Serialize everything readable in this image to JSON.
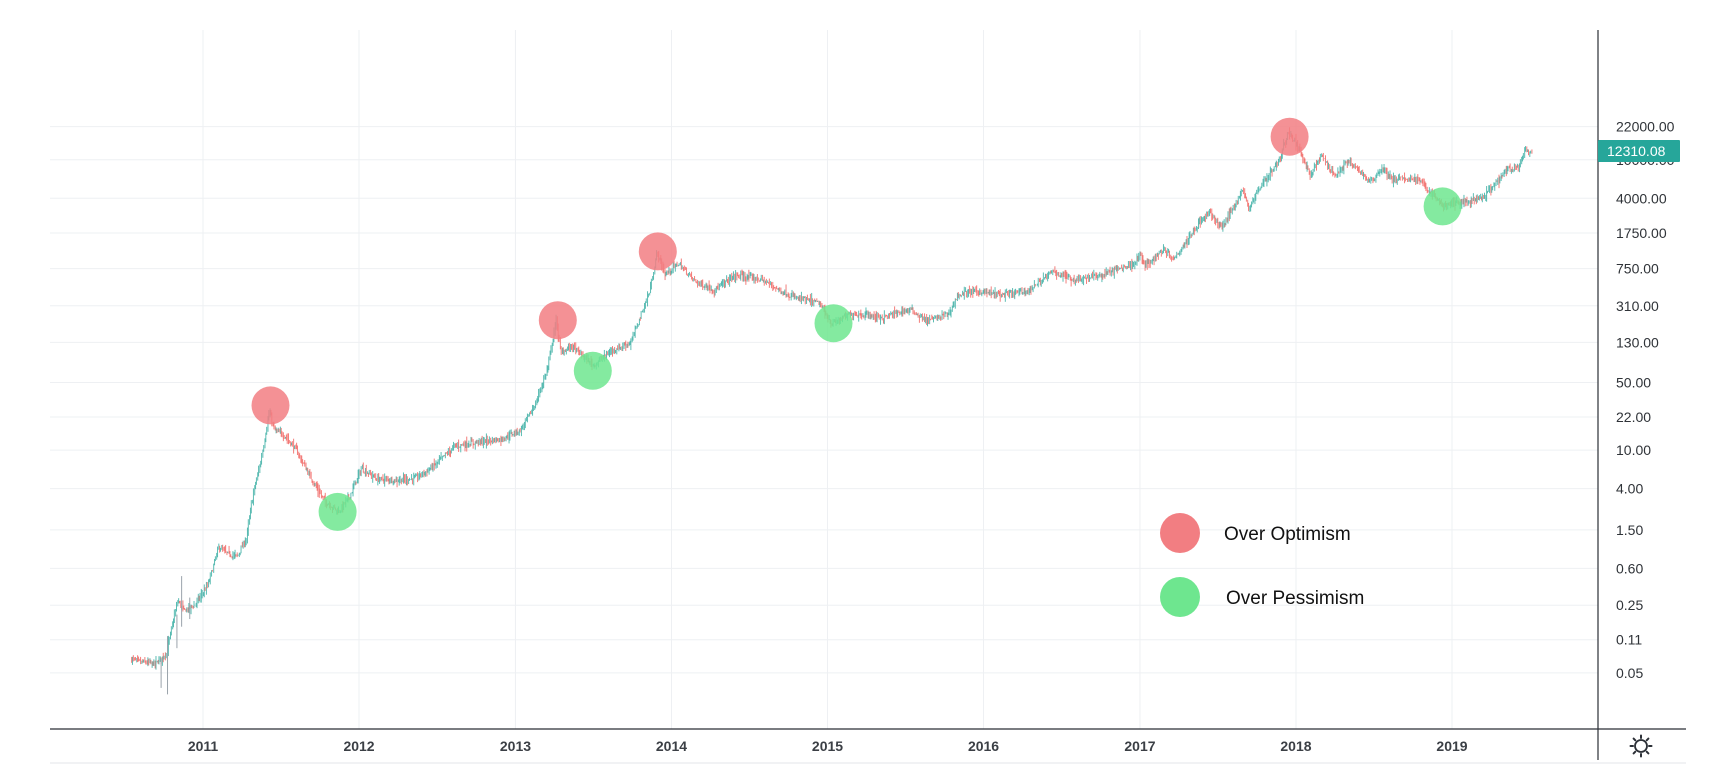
{
  "chart_data": {
    "type": "line",
    "title": "",
    "xlabel": "",
    "ylabel": "",
    "y_scale": "log",
    "xlim": [
      "2010-06-15",
      "2020-04-05"
    ],
    "ylim": [
      0.025,
      36000
    ],
    "grid": true,
    "legend_position": "bottom-right",
    "x_ticks": [
      "2011",
      "2012",
      "2013",
      "2014",
      "2015",
      "2016",
      "2017",
      "2018",
      "2019"
    ],
    "x_tick_dates": [
      "2011-01-01",
      "2012-01-01",
      "2013-01-01",
      "2014-01-01",
      "2015-01-01",
      "2016-01-01",
      "2017-01-01",
      "2018-01-01",
      "2019-01-01"
    ],
    "y_ticks": [
      {
        "value": 22000,
        "label": "22000.00"
      },
      {
        "value": 10000,
        "label": "10000.00"
      },
      {
        "value": 4000,
        "label": "4000.00"
      },
      {
        "value": 1750,
        "label": "1750.00"
      },
      {
        "value": 750,
        "label": "750.00"
      },
      {
        "value": 310,
        "label": "310.00"
      },
      {
        "value": 130,
        "label": "130.00"
      },
      {
        "value": 50,
        "label": "50.00"
      },
      {
        "value": 22,
        "label": "22.00"
      },
      {
        "value": 10,
        "label": "10.00"
      },
      {
        "value": 4,
        "label": "4.00"
      },
      {
        "value": 1.5,
        "label": "1.50"
      },
      {
        "value": 0.6,
        "label": "0.60"
      },
      {
        "value": 0.25,
        "label": "0.25"
      },
      {
        "value": 0.11,
        "label": "0.11"
      },
      {
        "value": 0.05,
        "label": "0.05"
      }
    ],
    "last_price": {
      "value": 12310.08,
      "label": "12310.08"
    },
    "colors": {
      "up": "#26a69a",
      "down": "#ef5350",
      "optimism": "#f27e82",
      "pessimism": "#6ee68f",
      "price_label_bg": "#26a69a"
    },
    "series": [
      {
        "values": [
          {
            "x": "2010-07-18",
            "y": 0.07
          },
          {
            "x": "2010-08-10",
            "y": 0.065
          },
          {
            "x": "2010-09-15",
            "y": 0.062
          },
          {
            "x": "2010-10-10",
            "y": 0.08
          },
          {
            "x": "2010-11-06",
            "y": 0.28
          },
          {
            "x": "2010-11-20",
            "y": 0.22
          },
          {
            "x": "2010-12-15",
            "y": 0.25
          },
          {
            "x": "2011-01-15",
            "y": 0.4
          },
          {
            "x": "2011-02-10",
            "y": 1.0
          },
          {
            "x": "2011-03-01",
            "y": 0.85
          },
          {
            "x": "2011-03-25",
            "y": 0.8
          },
          {
            "x": "2011-04-15",
            "y": 1.2
          },
          {
            "x": "2011-05-01",
            "y": 3.5
          },
          {
            "x": "2011-05-20",
            "y": 8.0
          },
          {
            "x": "2011-06-08",
            "y": 25.0
          },
          {
            "x": "2011-06-20",
            "y": 16.0
          },
          {
            "x": "2011-07-15",
            "y": 14.0
          },
          {
            "x": "2011-08-10",
            "y": 10.0
          },
          {
            "x": "2011-09-15",
            "y": 5.0
          },
          {
            "x": "2011-10-15",
            "y": 3.0
          },
          {
            "x": "2011-11-18",
            "y": 2.3
          },
          {
            "x": "2011-12-15",
            "y": 3.5
          },
          {
            "x": "2012-01-10",
            "y": 6.5
          },
          {
            "x": "2012-02-15",
            "y": 5.0
          },
          {
            "x": "2012-04-01",
            "y": 4.9
          },
          {
            "x": "2012-05-15",
            "y": 5.1
          },
          {
            "x": "2012-06-20",
            "y": 6.5
          },
          {
            "x": "2012-08-15",
            "y": 11.0
          },
          {
            "x": "2012-10-01",
            "y": 12.0
          },
          {
            "x": "2012-12-01",
            "y": 13.0
          },
          {
            "x": "2013-01-15",
            "y": 16.0
          },
          {
            "x": "2013-02-20",
            "y": 30.0
          },
          {
            "x": "2013-03-20",
            "y": 70.0
          },
          {
            "x": "2013-04-09",
            "y": 220.0
          },
          {
            "x": "2013-04-20",
            "y": 100.0
          },
          {
            "x": "2013-05-15",
            "y": 120.0
          },
          {
            "x": "2013-07-05",
            "y": 75.0
          },
          {
            "x": "2013-08-15",
            "y": 105.0
          },
          {
            "x": "2013-10-01",
            "y": 130.0
          },
          {
            "x": "2013-11-15",
            "y": 450.0
          },
          {
            "x": "2013-12-01",
            "y": 1100.0
          },
          {
            "x": "2013-12-20",
            "y": 650.0
          },
          {
            "x": "2014-01-20",
            "y": 850.0
          },
          {
            "x": "2014-03-01",
            "y": 550.0
          },
          {
            "x": "2014-04-15",
            "y": 450.0
          },
          {
            "x": "2014-06-01",
            "y": 640.0
          },
          {
            "x": "2014-08-01",
            "y": 580.0
          },
          {
            "x": "2014-10-15",
            "y": 380.0
          },
          {
            "x": "2014-12-15",
            "y": 330.0
          },
          {
            "x": "2015-01-14",
            "y": 200.0
          },
          {
            "x": "2015-03-01",
            "y": 260.0
          },
          {
            "x": "2015-05-15",
            "y": 235.0
          },
          {
            "x": "2015-07-15",
            "y": 285.0
          },
          {
            "x": "2015-08-25",
            "y": 215.0
          },
          {
            "x": "2015-10-15",
            "y": 260.0
          },
          {
            "x": "2015-11-05",
            "y": 400.0
          },
          {
            "x": "2015-12-15",
            "y": 440.0
          },
          {
            "x": "2016-02-15",
            "y": 400.0
          },
          {
            "x": "2016-04-15",
            "y": 440.0
          },
          {
            "x": "2016-06-15",
            "y": 700.0
          },
          {
            "x": "2016-08-01",
            "y": 580.0
          },
          {
            "x": "2016-10-01",
            "y": 630.0
          },
          {
            "x": "2016-12-20",
            "y": 850.0
          },
          {
            "x": "2017-01-05",
            "y": 1050.0
          },
          {
            "x": "2017-01-15",
            "y": 800.0
          },
          {
            "x": "2017-03-01",
            "y": 1200.0
          },
          {
            "x": "2017-03-25",
            "y": 950.0
          },
          {
            "x": "2017-05-20",
            "y": 2200.0
          },
          {
            "x": "2017-06-15",
            "y": 2800.0
          },
          {
            "x": "2017-07-15",
            "y": 2000.0
          },
          {
            "x": "2017-09-01",
            "y": 4800.0
          },
          {
            "x": "2017-09-15",
            "y": 3200.0
          },
          {
            "x": "2017-10-20",
            "y": 6000.0
          },
          {
            "x": "2017-11-25",
            "y": 9500.0
          },
          {
            "x": "2017-12-17",
            "y": 19500.0
          },
          {
            "x": "2018-01-15",
            "y": 12000.0
          },
          {
            "x": "2018-02-06",
            "y": 7000.0
          },
          {
            "x": "2018-03-05",
            "y": 11000.0
          },
          {
            "x": "2018-04-05",
            "y": 6800.0
          },
          {
            "x": "2018-05-05",
            "y": 9700.0
          },
          {
            "x": "2018-06-28",
            "y": 5900.0
          },
          {
            "x": "2018-07-25",
            "y": 8200.0
          },
          {
            "x": "2018-08-15",
            "y": 6300.0
          },
          {
            "x": "2018-10-15",
            "y": 6400.0
          },
          {
            "x": "2018-11-20",
            "y": 4300.0
          },
          {
            "x": "2018-12-15",
            "y": 3300.0
          },
          {
            "x": "2019-01-15",
            "y": 3600.0
          },
          {
            "x": "2019-02-15",
            "y": 3700.0
          },
          {
            "x": "2019-03-15",
            "y": 4000.0
          },
          {
            "x": "2019-04-05",
            "y": 5000.0
          },
          {
            "x": "2019-05-15",
            "y": 8000.0
          },
          {
            "x": "2019-06-10",
            "y": 8500.0
          },
          {
            "x": "2019-06-26",
            "y": 13000.0
          },
          {
            "x": "2019-07-05",
            "y": 11200.0
          },
          {
            "x": "2019-07-08",
            "y": 12310.08
          }
        ]
      }
    ],
    "markers": [
      {
        "type": "optimism",
        "x": "2011-06-08",
        "y": 29.0
      },
      {
        "type": "pessimism",
        "x": "2011-11-12",
        "y": 2.3
      },
      {
        "type": "optimism",
        "x": "2013-04-10",
        "y": 220.0
      },
      {
        "type": "pessimism",
        "x": "2013-07-01",
        "y": 66.0
      },
      {
        "type": "optimism",
        "x": "2013-11-30",
        "y": 1130.0
      },
      {
        "type": "pessimism",
        "x": "2015-01-15",
        "y": 205.0
      },
      {
        "type": "optimism",
        "x": "2017-12-17",
        "y": 17300.0
      },
      {
        "type": "pessimism",
        "x": "2018-12-10",
        "y": 3300.0
      }
    ],
    "legend": [
      {
        "key": "optimism",
        "label": "Over Optimism"
      },
      {
        "key": "pessimism",
        "label": "Over Pessimism"
      }
    ],
    "settings_icon": "gear-icon"
  }
}
